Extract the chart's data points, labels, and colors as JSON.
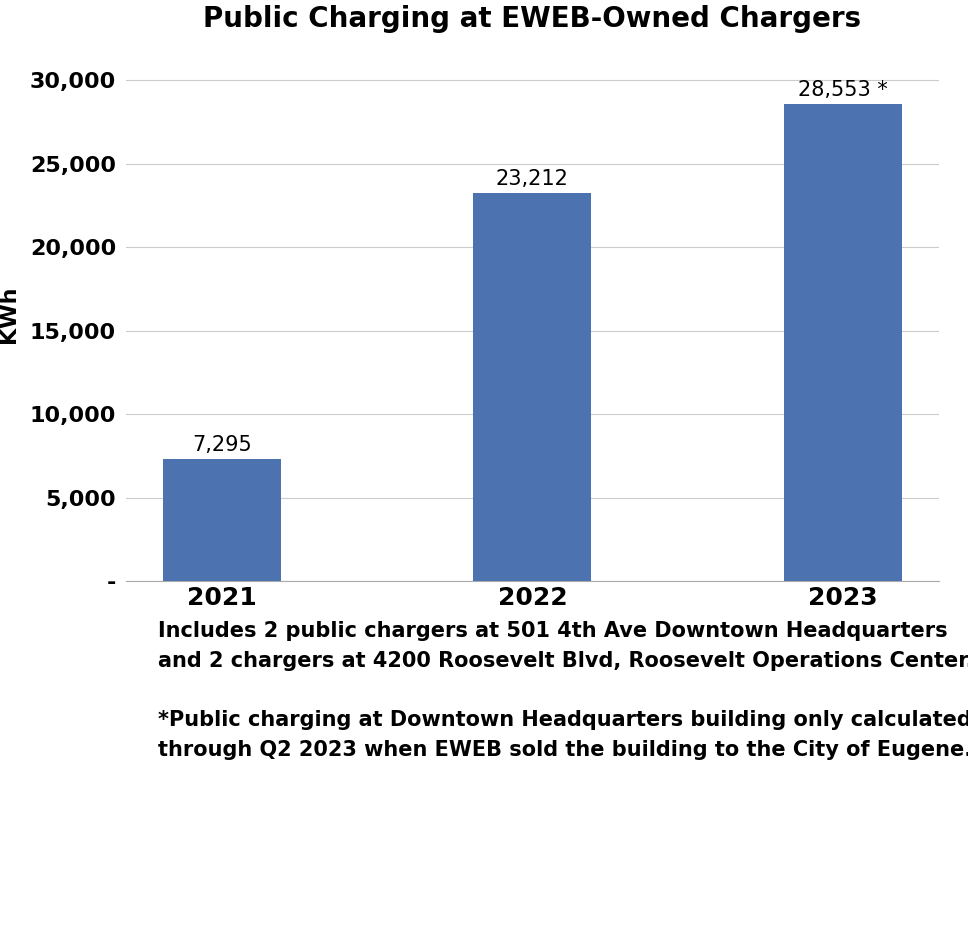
{
  "title": "Public Charging at EWEB-Owned Chargers",
  "categories": [
    "2021",
    "2022",
    "2023"
  ],
  "values": [
    7295,
    23212,
    28553
  ],
  "bar_color": "#4D72B0",
  "ylabel": "KWh",
  "ylim": [
    0,
    32000
  ],
  "yticks": [
    0,
    5000,
    10000,
    15000,
    20000,
    25000,
    30000
  ],
  "ytick_labels": [
    "-",
    "5,000",
    "10,000",
    "15,000",
    "20,000",
    "25,000",
    "30,000"
  ],
  "bar_labels": [
    "7,295",
    "23,212",
    "28,553 *"
  ],
  "footnote1": "Includes 2 public chargers at 501 4th Ave Downtown Headquarters",
  "footnote2": "and 2 chargers at 4200 Roosevelt Blvd, Roosevelt Operations Center.",
  "footnote3": "*Public charging at Downtown Headquarters building only calculated",
  "footnote4": "through Q2 2023 when EWEB sold the building to the City of Eugene.",
  "background_color": "#ffffff",
  "title_fontsize": 20,
  "label_fontsize": 16,
  "tick_fontsize": 16,
  "xtick_fontsize": 18,
  "footnote_fontsize": 15,
  "bar_label_fontsize": 15
}
